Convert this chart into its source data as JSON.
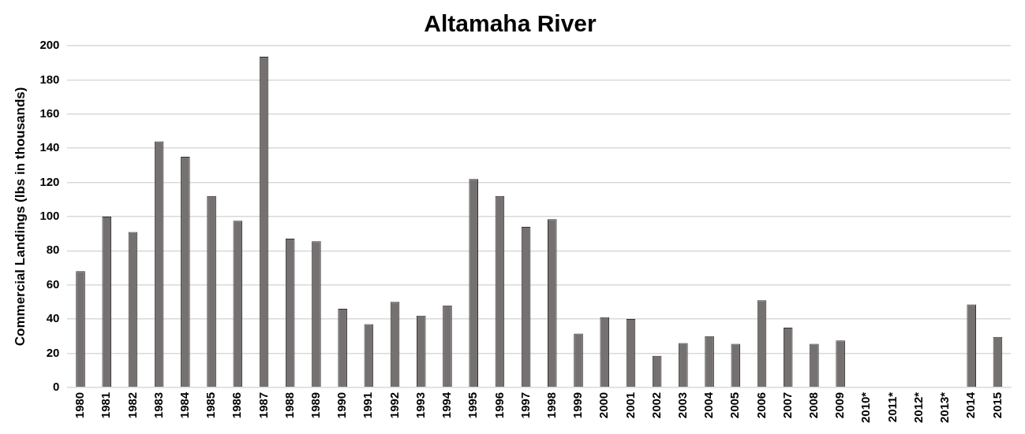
{
  "chart_data": {
    "type": "bar",
    "title": "Altamaha River",
    "ylabel": "Commercial Landings (lbs in thousands)",
    "categories": [
      "1980",
      "1981",
      "1982",
      "1983",
      "1984",
      "1985",
      "1986",
      "1987",
      "1988",
      "1989",
      "1990",
      "1991",
      "1992",
      "1993",
      "1994",
      "1995",
      "1996",
      "1997",
      "1998",
      "1999",
      "2000",
      "2001",
      "2002",
      "2003",
      "2004",
      "2005",
      "2006",
      "2007",
      "2008",
      "2009",
      "2010*",
      "2011*",
      "2012*",
      "2013*",
      "2014",
      "2015"
    ],
    "values": [
      68,
      100,
      91,
      144,
      135,
      112,
      97.5,
      193.5,
      87,
      85.5,
      46,
      37,
      50,
      42,
      48,
      122,
      112,
      94,
      98.5,
      31.5,
      41,
      40,
      18.5,
      26,
      30,
      25.5,
      51,
      35,
      25.5,
      27.5,
      null,
      null,
      null,
      null,
      48.5,
      29.5
    ],
    "color": "#767171",
    "ylim": [
      0,
      200
    ],
    "yticks": [
      0,
      20,
      40,
      60,
      80,
      100,
      120,
      140,
      160,
      180,
      200
    ],
    "grid": "y",
    "legend": false
  }
}
